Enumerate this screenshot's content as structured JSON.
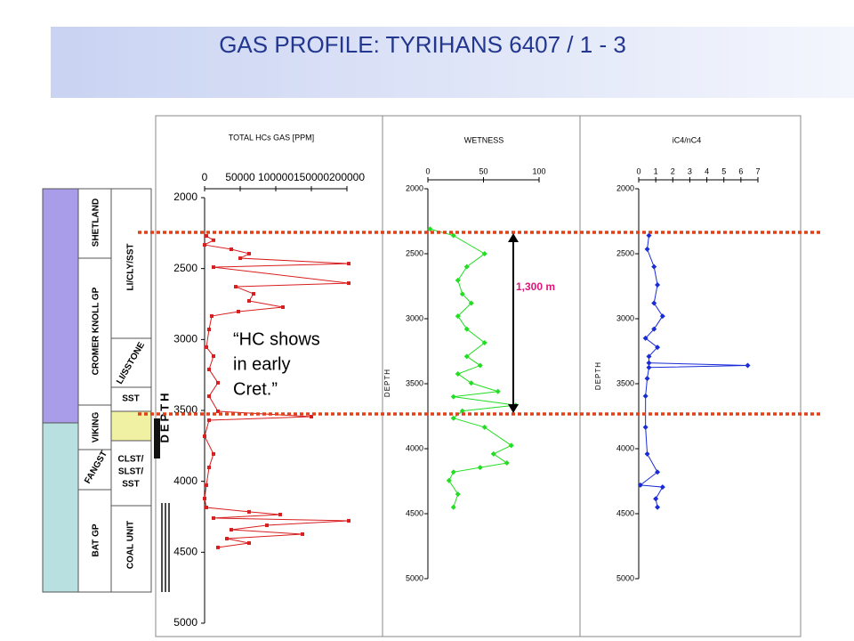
{
  "title": "GAS PROFILE: TYRIHANS 6407 / 1 - 3",
  "annotations": {
    "hc_note": [
      "“HC shows",
      "in early",
      "Cret.”"
    ],
    "interval": "1,300 m"
  },
  "stratigraphy": {
    "groups": [
      "SHETLAND",
      "CROMER KNOLL GP",
      "VIKING",
      "FANGST",
      "BAT GP"
    ],
    "lithology": [
      "LI/CLY/SST",
      "LI/SSTONE",
      "SST",
      "CLST/",
      "SLST/",
      "SST",
      "COAL UNIT"
    ]
  },
  "chart_data": [
    {
      "type": "line",
      "title": "TOTAL HCs GAS [PPM]",
      "y_label": "DEPTH",
      "color": "#d81e1e",
      "marker": "square",
      "depth": [
        2270,
        2300,
        2333,
        2364,
        2395,
        2427,
        2465,
        2490,
        2603,
        2628,
        2678,
        2728,
        2772,
        2803,
        2835,
        2929,
        3054,
        3117,
        3211,
        3305,
        3400,
        3506,
        3544,
        3569,
        3682,
        3807,
        3902,
        4027,
        4121,
        4184,
        4215,
        4234,
        4259,
        4278,
        4310,
        4341,
        4372,
        4404,
        4435,
        4466
      ],
      "values": [
        2500,
        12500,
        0,
        37500,
        62500,
        50000,
        202500,
        12500,
        202500,
        43750,
        68750,
        62500,
        110000,
        47500,
        10000,
        6250,
        2500,
        12500,
        6250,
        18750,
        6250,
        18750,
        150000,
        6250,
        0,
        12500,
        6250,
        2500,
        0,
        2500,
        62500,
        106250,
        12500,
        202500,
        87500,
        37500,
        137500,
        31250,
        62500,
        18750
      ],
      "xlim": [
        0,
        200000
      ],
      "xticks": [
        0,
        50000,
        100000,
        150000,
        200000
      ],
      "ylim": [
        2000,
        5000
      ],
      "yticks": [
        2000,
        2500,
        3000,
        3500,
        4000,
        4500,
        5000
      ],
      "invert_y": true
    },
    {
      "type": "line",
      "title": "WETNESS",
      "y_label": "DEPTH",
      "color": "#22dd22",
      "marker": "diamond",
      "depth": [
        2310,
        2360,
        2500,
        2600,
        2705,
        2810,
        2880,
        2980,
        3080,
        3185,
        3290,
        3360,
        3425,
        3495,
        3560,
        3600,
        3665,
        3710,
        3765,
        3835,
        3975,
        4040,
        4110,
        4145,
        4180,
        4245,
        4350,
        4450
      ],
      "values": [
        2,
        23,
        51,
        35,
        27,
        31,
        39,
        27,
        35,
        51,
        35,
        47,
        27,
        39,
        63,
        23,
        79,
        31,
        23,
        51,
        75,
        59,
        71,
        47,
        23,
        19,
        27,
        23
      ],
      "xlim": [
        0,
        100
      ],
      "xticks": [
        0,
        50,
        100
      ],
      "ylim": [
        2000,
        5000
      ],
      "yticks": [
        2000,
        2500,
        3000,
        3500,
        4000,
        4500,
        5000
      ],
      "invert_y": true
    },
    {
      "type": "line",
      "title": "iC4/nC4",
      "y_label": "DEPTH",
      "color": "#1a2bd8",
      "marker": "diamond",
      "depth": [
        2360,
        2465,
        2600,
        2740,
        2880,
        2980,
        3080,
        3150,
        3220,
        3290,
        3340,
        3360,
        3375,
        3460,
        3595,
        3835,
        4040,
        4180,
        4280,
        4295,
        4385,
        4450
      ],
      "values": [
        0.6,
        0.5,
        0.9,
        1.1,
        0.9,
        1.4,
        0.9,
        0.4,
        1.1,
        0.6,
        0.6,
        6.4,
        0.6,
        0.5,
        0.4,
        0.4,
        0.5,
        1.1,
        0.1,
        1.4,
        1.0,
        1.1
      ],
      "xlim": [
        0,
        7
      ],
      "xticks": [
        0,
        1,
        2,
        3,
        4,
        5,
        6,
        7
      ],
      "ylim": [
        2000,
        5000
      ],
      "yticks": [
        2000,
        2500,
        3000,
        3500,
        4000,
        4500,
        5000
      ],
      "invert_y": true
    }
  ]
}
